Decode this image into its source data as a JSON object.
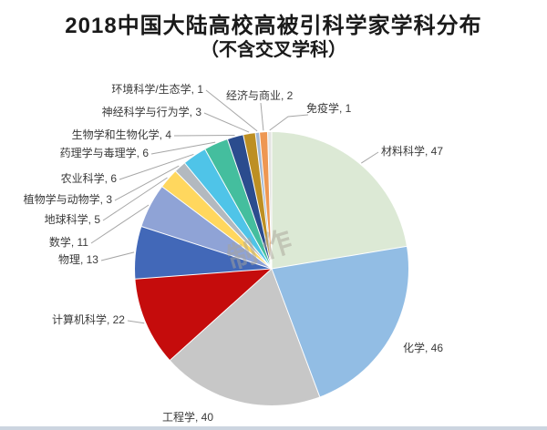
{
  "chart_data": {
    "type": "pie",
    "title": "2018中国大陆高校高被引科学家学科分布",
    "subtitle": "（不含交叉学科）",
    "legend_position": "none",
    "labels_position": "outside-with-leader-lines",
    "start_angle_deg": 0,
    "direction": "clockwise",
    "label_format": "name, value",
    "watermark_text": "制作",
    "label_text_color": "#3a3a3a",
    "leader_line_color": "#a6a6a6",
    "categories": [
      {
        "label": "材料科学",
        "value": 47,
        "color": "#dce9d5"
      },
      {
        "label": "化学",
        "value": 46,
        "color": "#92bde4"
      },
      {
        "label": "工程学",
        "value": 40,
        "color": "#c7c7c7"
      },
      {
        "label": "计算机科学",
        "value": 22,
        "color": "#c50c0c"
      },
      {
        "label": "物理",
        "value": 13,
        "color": "#4268b8"
      },
      {
        "label": "数学",
        "value": 11,
        "color": "#8fa3d6"
      },
      {
        "label": "地球科学",
        "value": 5,
        "color": "#ffd75e"
      },
      {
        "label": "植物学与动物学",
        "value": 3,
        "color": "#b3b9bf"
      },
      {
        "label": "农业科学",
        "value": 6,
        "color": "#4fc4e8"
      },
      {
        "label": "药理学与毒理学",
        "value": 6,
        "color": "#44be9e"
      },
      {
        "label": "生物学和生物化学",
        "value": 4,
        "color": "#2b4c8e"
      },
      {
        "label": "神经科学与行为学",
        "value": 3,
        "color": "#bd8f23"
      },
      {
        "label": "环境科学/生态学",
        "value": 1,
        "color": "#a3b8d3"
      },
      {
        "label": "经济与商业",
        "value": 2,
        "color": "#ee9752"
      },
      {
        "label": "免疫学",
        "value": 1,
        "color": "#e3e3e1"
      }
    ]
  }
}
